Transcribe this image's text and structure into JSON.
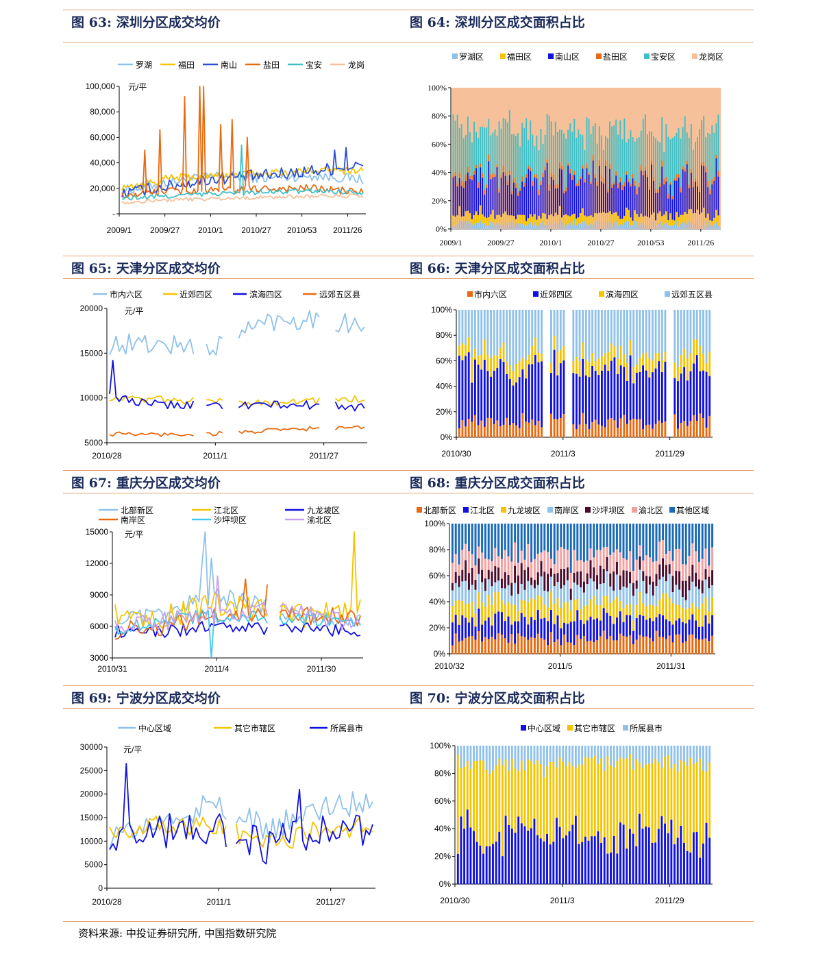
{
  "figures": [
    {
      "num": "图 63:",
      "title": "深圳分区成交均价"
    },
    {
      "num": "图 64:",
      "title": "深圳分区成交面积占比"
    },
    {
      "num": "图 65:",
      "title": "天津分区成交均价"
    },
    {
      "num": "图 66:",
      "title": "天津分区成交面积占比"
    },
    {
      "num": "图 67:",
      "title": "重庆分区成交均价"
    },
    {
      "num": "图 68:",
      "title": "重庆分区成交面积占比"
    },
    {
      "num": "图 69:",
      "title": "宁波分区成交均价"
    },
    {
      "num": "图 70:",
      "title": "宁波分区成交面积占比"
    }
  ],
  "source": "资料来源: 中投证券研究所, 中国指数研究院",
  "chart_data": [
    {
      "id": "c63",
      "type": "line",
      "unit": "元/平",
      "ylim": [
        0,
        100000
      ],
      "yticks": [
        "-",
        "20,000",
        "40,000",
        "60,000",
        "80,000",
        "100,000"
      ],
      "xticks": [
        "2009/1",
        "2009/27",
        "2010/1",
        "2010/27",
        "2010/53",
        "2011/26"
      ],
      "n": 128,
      "series": [
        {
          "name": "罗湖",
          "color": "#8fc1ea",
          "base": [
            18000,
            25000,
            30000,
            28000,
            30000,
            27000
          ],
          "noise": 4000,
          "spikes": []
        },
        {
          "name": "福田",
          "color": "#f5c400",
          "base": [
            20000,
            28000,
            30000,
            32000,
            34000,
            34000
          ],
          "noise": 3000,
          "spikes": []
        },
        {
          "name": "南山",
          "color": "#2a4fd6",
          "base": [
            16000,
            22000,
            28000,
            30000,
            34000,
            38000
          ],
          "noise": 5000,
          "spikes": [
            [
              118,
              52000
            ],
            [
              112,
              50000
            ]
          ]
        },
        {
          "name": "盐田",
          "color": "#e86a10",
          "base": [
            14000,
            18000,
            18000,
            20000,
            20000,
            17000
          ],
          "noise": 3000,
          "spikes": [
            [
              12,
              50000
            ],
            [
              20,
              66000
            ],
            [
              33,
              92000
            ],
            [
              41,
              100000
            ],
            [
              43,
              100000
            ],
            [
              52,
              70000
            ],
            [
              58,
              74000
            ],
            [
              66,
              60000
            ]
          ]
        },
        {
          "name": "宝安",
          "color": "#3ec0c8",
          "base": [
            12000,
            14000,
            16000,
            17000,
            18000,
            17000
          ],
          "noise": 2000,
          "spikes": [
            [
              63,
              54000
            ]
          ]
        },
        {
          "name": "龙岗",
          "color": "#f6c09a",
          "base": [
            9000,
            11000,
            12000,
            13000,
            14000,
            14000
          ],
          "noise": 1500,
          "spikes": []
        }
      ]
    },
    {
      "id": "c64",
      "type": "stacked_bar_percent",
      "yticks": [
        "0%",
        "20%",
        "40%",
        "60%",
        "80%",
        "100%"
      ],
      "xticks": [
        "2009/1",
        "2009/27",
        "2010/1",
        "2010/27",
        "2010/53",
        "2011/26"
      ],
      "n": 128,
      "series": [
        {
          "name": "罗湖区",
          "color": "#8fc1ea",
          "share": 4
        },
        {
          "name": "福田区",
          "color": "#f5c400",
          "share": 6
        },
        {
          "name": "南山区",
          "color": "#1010e0",
          "share": 25
        },
        {
          "name": "盐田区",
          "color": "#e86a10",
          "share": 3
        },
        {
          "name": "宝安区",
          "color": "#3ec0c8",
          "share": 32
        },
        {
          "name": "龙岗区",
          "color": "#f6c09a",
          "share": 30
        }
      ]
    },
    {
      "id": "c65",
      "type": "line",
      "unit": "元/平",
      "ylim": [
        5000,
        20000
      ],
      "yticks": [
        "5000",
        "10000",
        "15000",
        "20000"
      ],
      "xticks": [
        "2010/28",
        "2011/1",
        "2011/27"
      ],
      "n": 80,
      "gaps": [
        [
          27,
          30
        ],
        [
          36,
          40
        ],
        [
          66,
          70
        ]
      ],
      "series": [
        {
          "name": "市内六区",
          "color": "#8fc1ea",
          "base": [
            16000,
            16000,
            15500,
            18500,
            19000,
            18000
          ],
          "noise": 1200,
          "spikes": []
        },
        {
          "name": "近郊四区",
          "color": "#f5c400",
          "base": [
            10000,
            9800,
            9600,
            9500,
            9700,
            9900
          ],
          "noise": 400,
          "spikes": []
        },
        {
          "name": "滨海四区",
          "color": "#1010e0",
          "base": [
            10000,
            9200,
            9200,
            9200,
            9200,
            9000
          ],
          "noise": 500,
          "spikes": [
            [
              1,
              14200
            ],
            [
              67,
              10800
            ]
          ]
        },
        {
          "name": "远郊五区县",
          "color": "#e86a10",
          "base": [
            6000,
            5900,
            6000,
            6300,
            6600,
            6700
          ],
          "noise": 250,
          "spikes": []
        }
      ]
    },
    {
      "id": "c66",
      "type": "stacked_bar_percent",
      "yticks": [
        "0%",
        "20%",
        "40%",
        "60%",
        "80%",
        "100%"
      ],
      "xticks": [
        "2010/30",
        "2011/3",
        "2011/29"
      ],
      "n": 80,
      "gaps": [
        [
          27,
          29
        ],
        [
          34,
          36
        ],
        [
          66,
          68
        ]
      ],
      "series": [
        {
          "name": "市内六区",
          "color": "#e86a10",
          "share": 12
        },
        {
          "name": "近郊四区",
          "color": "#1010e0",
          "share": 42
        },
        {
          "name": "滨海四区",
          "color": "#f5c400",
          "share": 12
        },
        {
          "name": "远郊五区县",
          "color": "#8fc1ea",
          "share": 34
        }
      ]
    },
    {
      "id": "c67",
      "type": "line",
      "unit": "元/平",
      "ylim": [
        3000,
        15000
      ],
      "yticks": [
        "3000",
        "6000",
        "9000",
        "12000",
        "15000"
      ],
      "xticks": [
        "2010/31",
        "2011/4",
        "2011/30"
      ],
      "n": 80,
      "gaps": [
        [
          50,
          53
        ]
      ],
      "series": [
        {
          "name": "北部新区",
          "color": "#8fc1ea",
          "base": [
            6500,
            7000,
            9000,
            8000,
            7000,
            6500
          ],
          "noise": 900,
          "spikes": [
            [
              28,
              12000
            ],
            [
              29,
              15000
            ],
            [
              31,
              12500
            ]
          ]
        },
        {
          "name": "江北区",
          "color": "#f5c400",
          "base": [
            7000,
            7000,
            8000,
            7500,
            7000,
            7500
          ],
          "noise": 1200,
          "spikes": [
            [
              77,
              15000
            ]
          ]
        },
        {
          "name": "九龙坡区",
          "color": "#1010e0",
          "base": [
            5500,
            5500,
            6000,
            5800,
            5800,
            5500
          ],
          "noise": 600,
          "spikes": []
        },
        {
          "name": "南岸区",
          "color": "#e86a10",
          "base": [
            5500,
            6000,
            7000,
            7500,
            7000,
            6800
          ],
          "noise": 900,
          "spikes": [
            [
              42,
              10500
            ],
            [
              49,
              10000
            ]
          ]
        },
        {
          "name": "沙坪坝区",
          "color": "#3ec8f0",
          "base": [
            5800,
            6500,
            7000,
            6800,
            6500,
            6500
          ],
          "noise": 700,
          "spikes": [
            [
              31,
              3000
            ]
          ]
        },
        {
          "name": "渝北区",
          "color": "#c8a0f0",
          "base": [
            6000,
            6500,
            7000,
            7500,
            7000,
            6000
          ],
          "noise": 900,
          "spikes": [
            [
              33,
              10800
            ]
          ]
        }
      ]
    },
    {
      "id": "c68",
      "type": "stacked_bar_percent",
      "yticks": [
        "0%",
        "20%",
        "40%",
        "60%",
        "80%",
        "100%"
      ],
      "xticks": [
        "2010/32",
        "2011/5",
        "2011/31"
      ],
      "n": 80,
      "gaps": [],
      "series": [
        {
          "name": "北部新区",
          "color": "#e86a10",
          "share": 12
        },
        {
          "name": "江北区",
          "color": "#1010e0",
          "share": 14
        },
        {
          "name": "九龙坡区",
          "color": "#f5c400",
          "share": 13
        },
        {
          "name": "南岸区",
          "color": "#8fc1ea",
          "share": 13
        },
        {
          "name": "沙坪坝区",
          "color": "#4a0a2a",
          "share": 11
        },
        {
          "name": "渝北区",
          "color": "#f5a0a0",
          "share": 13
        },
        {
          "name": "其他区域",
          "color": "#1a6ab8",
          "share": 24
        }
      ]
    },
    {
      "id": "c69",
      "type": "line",
      "unit": "元/平",
      "ylim": [
        0,
        30000
      ],
      "yticks": [
        "0",
        "5000",
        "10000",
        "15000",
        "20000",
        "25000",
        "30000"
      ],
      "xticks": [
        "2010/28",
        "2011/1",
        "2011/27"
      ],
      "n": 80,
      "gaps": [
        [
          36,
          38
        ]
      ],
      "series": [
        {
          "name": "中心区域",
          "color": "#8fc1ea",
          "base": [
            11000,
            14000,
            18000,
            12000,
            17000,
            19000
          ],
          "noise": 3000,
          "spikes": []
        },
        {
          "name": "其它市辖区",
          "color": "#f5c400",
          "base": [
            12000,
            14000,
            13000,
            9500,
            12500,
            13000
          ],
          "noise": 2500,
          "spikes": []
        },
        {
          "name": "所属县市",
          "color": "#1010e0",
          "base": [
            11000,
            12000,
            13000,
            9000,
            12000,
            13000
          ],
          "noise": 4000,
          "spikes": [
            [
              5,
              26500
            ],
            [
              57,
              21000
            ]
          ]
        }
      ]
    },
    {
      "id": "c70",
      "type": "stacked_bar_percent",
      "yticks": [
        "0%",
        "20%",
        "40%",
        "60%",
        "80%",
        "100%"
      ],
      "xticks": [
        "2010/30",
        "2011/3",
        "2011/29"
      ],
      "n": 80,
      "gaps": [],
      "series": [
        {
          "name": "中心区域",
          "color": "#1010e0",
          "share": 36
        },
        {
          "name": "其它市辖区",
          "color": "#f5c400",
          "share": 52
        },
        {
          "name": "所属县市",
          "color": "#8fc1ea",
          "share": 12
        }
      ]
    }
  ]
}
